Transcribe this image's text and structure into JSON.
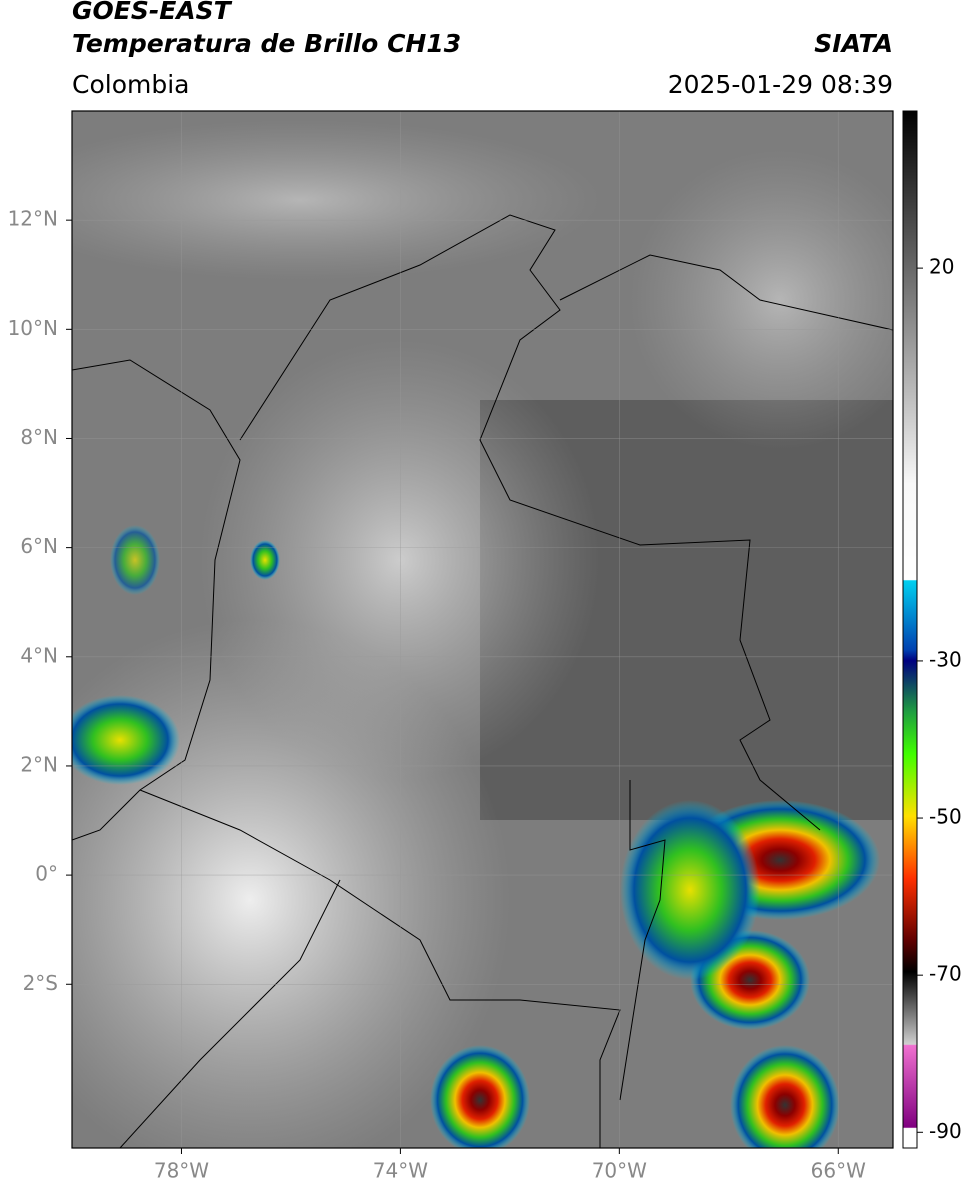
{
  "header": {
    "title": "GOES-EAST",
    "subtitle": "Temperatura de Brillo CH13",
    "region": "Colombia",
    "source": "SIATA",
    "timestamp": "2025-01-29 08:39"
  },
  "chart_data": {
    "type": "map",
    "xlim": [
      -80,
      -65
    ],
    "ylim": [
      -5,
      14
    ],
    "xticks": [
      {
        "value": -78,
        "label": "78°W"
      },
      {
        "value": -74,
        "label": "74°W"
      },
      {
        "value": -70,
        "label": "70°W"
      },
      {
        "value": -66,
        "label": "66°W"
      }
    ],
    "yticks": [
      {
        "value": 12,
        "label": "12°N"
      },
      {
        "value": 10,
        "label": "10°N"
      },
      {
        "value": 8,
        "label": "8°N"
      },
      {
        "value": 6,
        "label": "6°N"
      },
      {
        "value": 4,
        "label": "4°N"
      },
      {
        "value": 2,
        "label": "2°N"
      },
      {
        "value": 0,
        "label": "0°"
      },
      {
        "value": -2,
        "label": "2°S"
      }
    ],
    "grid": true,
    "colorbar": {
      "lim": [
        -92,
        40
      ],
      "ticks": [
        20,
        -30,
        -50,
        -70,
        -90
      ]
    }
  }
}
